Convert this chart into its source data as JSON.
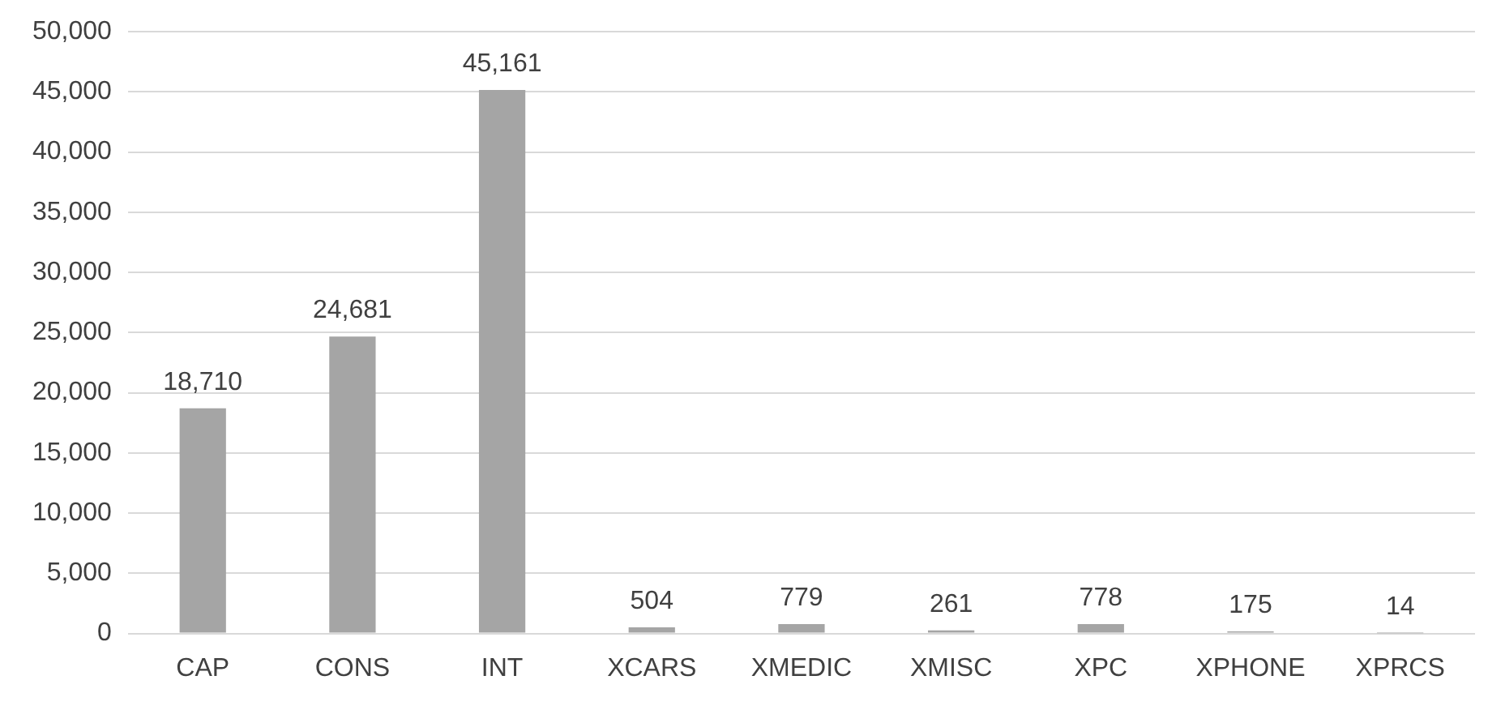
{
  "chart_data": {
    "type": "bar",
    "categories": [
      "CAP",
      "CONS",
      "INT",
      "XCARS",
      "XMEDIC",
      "XMISC",
      "XPC",
      "XPHONE",
      "XPRCS"
    ],
    "values": [
      18710,
      24681,
      45161,
      504,
      779,
      261,
      778,
      175,
      14
    ],
    "value_labels": [
      "18,710",
      "24,681",
      "45,161",
      "504",
      "779",
      "261",
      "778",
      "175",
      "14"
    ],
    "color": "#a5a5a5",
    "ylim": [
      0,
      50000
    ],
    "yticks": [
      {
        "value": 0,
        "label": "0"
      },
      {
        "value": 5000,
        "label": "5,000"
      },
      {
        "value": 10000,
        "label": "10,000"
      },
      {
        "value": 15000,
        "label": "15,000"
      },
      {
        "value": 20000,
        "label": "20,000"
      },
      {
        "value": 25000,
        "label": "25,000"
      },
      {
        "value": 30000,
        "label": "30,000"
      },
      {
        "value": 35000,
        "label": "35,000"
      },
      {
        "value": 40000,
        "label": "40,000"
      },
      {
        "value": 45000,
        "label": "45,000"
      },
      {
        "value": 50000,
        "label": "50,000"
      }
    ],
    "grid": "y",
    "legend": false
  }
}
